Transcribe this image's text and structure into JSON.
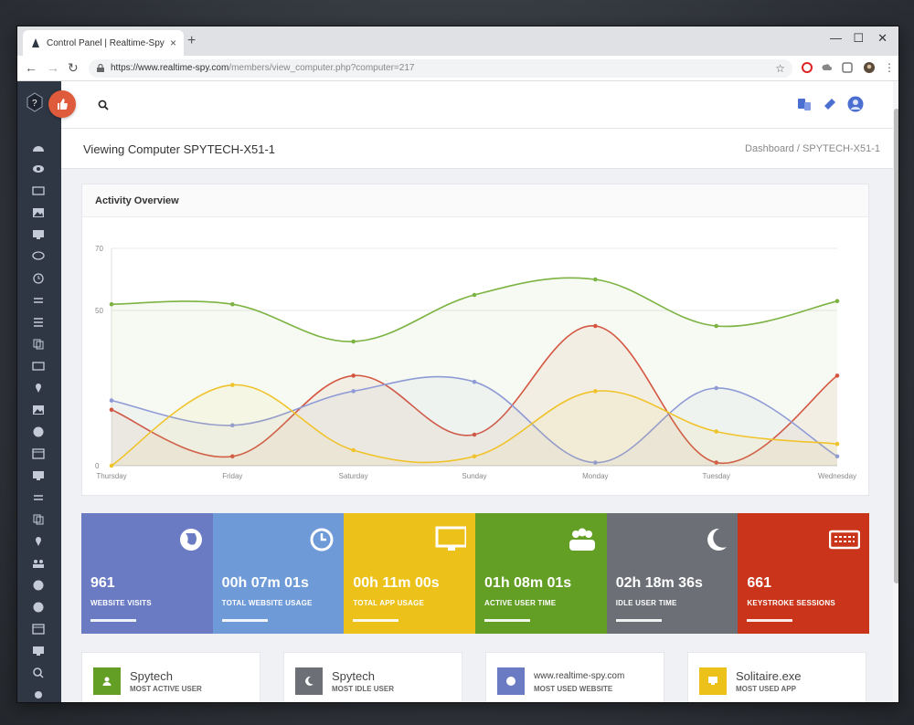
{
  "browser": {
    "tab_title": "Control Panel | Realtime-Spy",
    "url_host": "https://www.realtime-spy.com",
    "url_path": "/members/view_computer.php?computer=217"
  },
  "page": {
    "title": "Viewing Computer SPYTECH-X51-1",
    "breadcrumb": "Dashboard  /  SPYTECH-X51-1"
  },
  "activity": {
    "heading": "Activity Overview"
  },
  "chart_data": {
    "type": "area",
    "categories": [
      "Thursday",
      "Friday",
      "Saturday",
      "Sunday",
      "Monday",
      "Tuesday",
      "Wednesday"
    ],
    "yticks": [
      "0",
      "50",
      "70"
    ],
    "ylim": [
      0,
      70
    ],
    "grid": true,
    "series": [
      {
        "color": "#7cb342",
        "values": [
          52,
          52,
          40,
          55,
          60,
          45,
          53
        ]
      },
      {
        "color": "#d4553f",
        "values": [
          18,
          3,
          29,
          10,
          45,
          1,
          29
        ]
      },
      {
        "color": "#8f9bd6",
        "values": [
          21,
          13,
          24,
          27,
          1,
          25,
          3
        ]
      },
      {
        "color": "#f0c32b",
        "values": [
          0,
          26,
          5,
          3,
          24,
          11,
          7
        ]
      }
    ]
  },
  "tiles": [
    {
      "value": "961",
      "label": "WEBSITE VISITS",
      "color": "#6a7bc4",
      "icon": "globe-icon"
    },
    {
      "value": "00h 07m 01s",
      "label": "TOTAL WEBSITE USAGE",
      "color": "#6e9ad8",
      "icon": "clock-icon"
    },
    {
      "value": "00h 11m 00s",
      "label": "TOTAL APP USAGE",
      "color": "#ecc21a",
      "icon": "monitor-icon"
    },
    {
      "value": "01h 08m 01s",
      "label": "ACTIVE USER TIME",
      "color": "#639f24",
      "icon": "users-icon"
    },
    {
      "value": "02h 18m 36s",
      "label": "IDLE USER TIME",
      "color": "#6c6f75",
      "icon": "moon-icon"
    },
    {
      "value": "661",
      "label": "KEYSTROKE SESSIONS",
      "color": "#c9341a",
      "icon": "keyboard-icon"
    }
  ],
  "summary": [
    {
      "name": "Spytech",
      "label": "MOST ACTIVE USER",
      "color": "#639f24",
      "icon": "user-icon"
    },
    {
      "name": "Spytech",
      "label": "MOST IDLE USER",
      "color": "#6c6f75",
      "icon": "moon-icon"
    },
    {
      "name": "www.realtime-spy.com",
      "label": "MOST USED WEBSITE",
      "color": "#6a7bc4",
      "icon": "globe-icon"
    },
    {
      "name": "Solitaire.exe",
      "label": "MOST USED APP",
      "color": "#ecc21a",
      "icon": "monitor-icon"
    }
  ]
}
